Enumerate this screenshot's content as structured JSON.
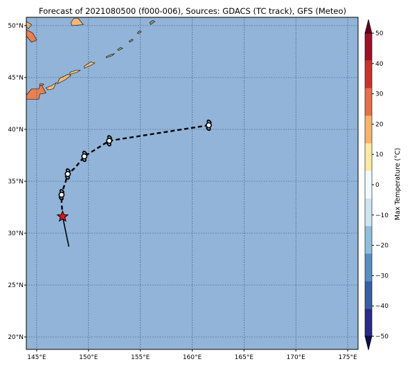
{
  "title": "Forecast of 2021080500 (f000-006), Sources: GDACS (TC track), GFS (Meteo)",
  "map": {
    "lon_range": [
      144,
      176
    ],
    "lat_range": [
      18.8,
      50.8
    ],
    "lon_ticks": [
      {
        "value": 145,
        "label": "145°E"
      },
      {
        "value": 150,
        "label": "150°E"
      },
      {
        "value": 155,
        "label": "155°E"
      },
      {
        "value": 160,
        "label": "160°E"
      },
      {
        "value": 165,
        "label": "165°E"
      },
      {
        "value": 170,
        "label": "170°E"
      },
      {
        "value": 175,
        "label": "175°E"
      }
    ],
    "lat_ticks": [
      {
        "value": 20,
        "label": "20°N"
      },
      {
        "value": 25,
        "label": "25°N"
      },
      {
        "value": 30,
        "label": "30°N"
      },
      {
        "value": 35,
        "label": "35°N"
      },
      {
        "value": 40,
        "label": "40°N"
      },
      {
        "value": 45,
        "label": "45°N"
      },
      {
        "value": 50,
        "label": "50°N"
      }
    ],
    "ocean_color": "#91b4d8",
    "grid": true
  },
  "colorbar": {
    "label": "Max Temperature (°C)",
    "ticks": [
      "50",
      "40",
      "30",
      "20",
      "10",
      "0",
      "−10",
      "−20",
      "−30",
      "−40",
      "−50"
    ],
    "tick_values": [
      50,
      40,
      30,
      20,
      10,
      0,
      -10,
      -20,
      -30,
      -40,
      -50
    ],
    "colors": [
      "#67001f",
      "#a50f26",
      "#d0302a",
      "#ea6e45",
      "#fbb267",
      "#fee9a0",
      "#f1f9fc",
      "#c9e6f1",
      "#8ebfdc",
      "#5590c3",
      "#3660a8",
      "#2a2a8c",
      "#0d0d55"
    ]
  },
  "track": {
    "past": [
      {
        "lon": 148.1,
        "lat": 28.7
      },
      {
        "lon": 147.5,
        "lat": 31.6
      }
    ],
    "current": {
      "lon": 147.5,
      "lat": 31.6
    },
    "forecast": [
      {
        "lon": 147.5,
        "lat": 31.6
      },
      {
        "lon": 147.4,
        "lat": 33.0
      },
      {
        "lon": 147.4,
        "lat": 33.8
      },
      {
        "lon": 147.8,
        "lat": 35.0
      },
      {
        "lon": 148.0,
        "lat": 35.7
      },
      {
        "lon": 148.7,
        "lat": 36.3
      },
      {
        "lon": 149.6,
        "lat": 37.4
      },
      {
        "lon": 152.0,
        "lat": 38.9
      },
      {
        "lon": 161.6,
        "lat": 40.4
      }
    ],
    "storm_markers": [
      {
        "lon": 147.4,
        "lat": 33.7
      },
      {
        "lon": 148.0,
        "lat": 35.7
      },
      {
        "lon": 149.6,
        "lat": 37.4
      },
      {
        "lon": 152.0,
        "lat": 38.9
      },
      {
        "lon": 161.6,
        "lat": 40.4
      }
    ]
  },
  "land": {
    "shapes": [
      {
        "fill": "#e8804f",
        "points": [
          [
            144,
            49.6
          ],
          [
            144.6,
            49.3
          ],
          [
            145.0,
            48.6
          ],
          [
            144.5,
            48.4
          ],
          [
            144,
            49.0
          ]
        ]
      },
      {
        "fill": "#f5b774",
        "points": [
          [
            144,
            50.4
          ],
          [
            144.5,
            50.1
          ],
          [
            144.2,
            49.7
          ],
          [
            144,
            49.9
          ]
        ]
      },
      {
        "fill": "#f5b774",
        "points": [
          [
            149.0,
            50.7
          ],
          [
            149.5,
            50.1
          ],
          [
            148.4,
            50.0
          ],
          [
            148.3,
            50.3
          ],
          [
            148.6,
            50.7
          ]
        ]
      },
      {
        "fill": "#e8804f",
        "points": [
          [
            144,
            43.3
          ],
          [
            144.5,
            43.9
          ],
          [
            145.2,
            43.9
          ],
          [
            145.4,
            44.4
          ],
          [
            145.9,
            43.5
          ],
          [
            145.3,
            43.4
          ],
          [
            145.2,
            42.9
          ],
          [
            144.5,
            42.9
          ],
          [
            144,
            42.9
          ]
        ]
      },
      {
        "fill": "#f5b774",
        "points": [
          [
            146.1,
            43.8
          ],
          [
            146.6,
            43.9
          ],
          [
            146.9,
            44.5
          ],
          [
            146.4,
            44.2
          ],
          [
            145.9,
            44.0
          ]
        ]
      },
      {
        "fill": "#f5b774",
        "points": [
          [
            147.0,
            44.4
          ],
          [
            147.8,
            44.8
          ],
          [
            148.3,
            45.2
          ],
          [
            148.0,
            45.3
          ],
          [
            147.2,
            44.9
          ]
        ]
      },
      {
        "fill": "#f5b774",
        "points": [
          [
            148.2,
            45.3
          ],
          [
            148.9,
            45.5
          ],
          [
            149.2,
            45.7
          ],
          [
            148.8,
            45.7
          ],
          [
            148.2,
            45.5
          ]
        ]
      },
      {
        "fill": "#f5b774",
        "points": [
          [
            149.6,
            45.9
          ],
          [
            150.3,
            46.2
          ],
          [
            150.6,
            46.4
          ],
          [
            150.2,
            46.5
          ],
          [
            149.6,
            46.1
          ]
        ]
      },
      {
        "fill": "#e8804f",
        "points": [
          [
            145.3,
            44.2
          ],
          [
            145.7,
            44.3
          ],
          [
            145.6,
            44.4
          ],
          [
            145.3,
            44.4
          ]
        ]
      },
      {
        "fill": "#8fa56e",
        "points": [
          [
            151.7,
            46.9
          ],
          [
            152.3,
            47.1
          ],
          [
            152.5,
            47.3
          ],
          [
            152.1,
            47.2
          ],
          [
            151.7,
            47.0
          ]
        ]
      },
      {
        "fill": "#8fa56e",
        "points": [
          [
            152.9,
            47.6
          ],
          [
            153.3,
            47.8
          ],
          [
            153.1,
            47.9
          ],
          [
            152.8,
            47.7
          ]
        ]
      },
      {
        "fill": "#8fa56e",
        "points": [
          [
            154.0,
            48.4
          ],
          [
            154.3,
            48.6
          ],
          [
            154.2,
            48.7
          ],
          [
            153.9,
            48.5
          ]
        ]
      },
      {
        "fill": "#8fa56e",
        "points": [
          [
            154.8,
            49.2
          ],
          [
            155.1,
            49.4
          ],
          [
            154.9,
            49.5
          ],
          [
            154.7,
            49.3
          ]
        ]
      },
      {
        "fill": "#8fa56e",
        "points": [
          [
            156.0,
            50.1
          ],
          [
            156.4,
            50.4
          ],
          [
            156.2,
            50.5
          ],
          [
            155.9,
            50.3
          ]
        ]
      }
    ]
  }
}
